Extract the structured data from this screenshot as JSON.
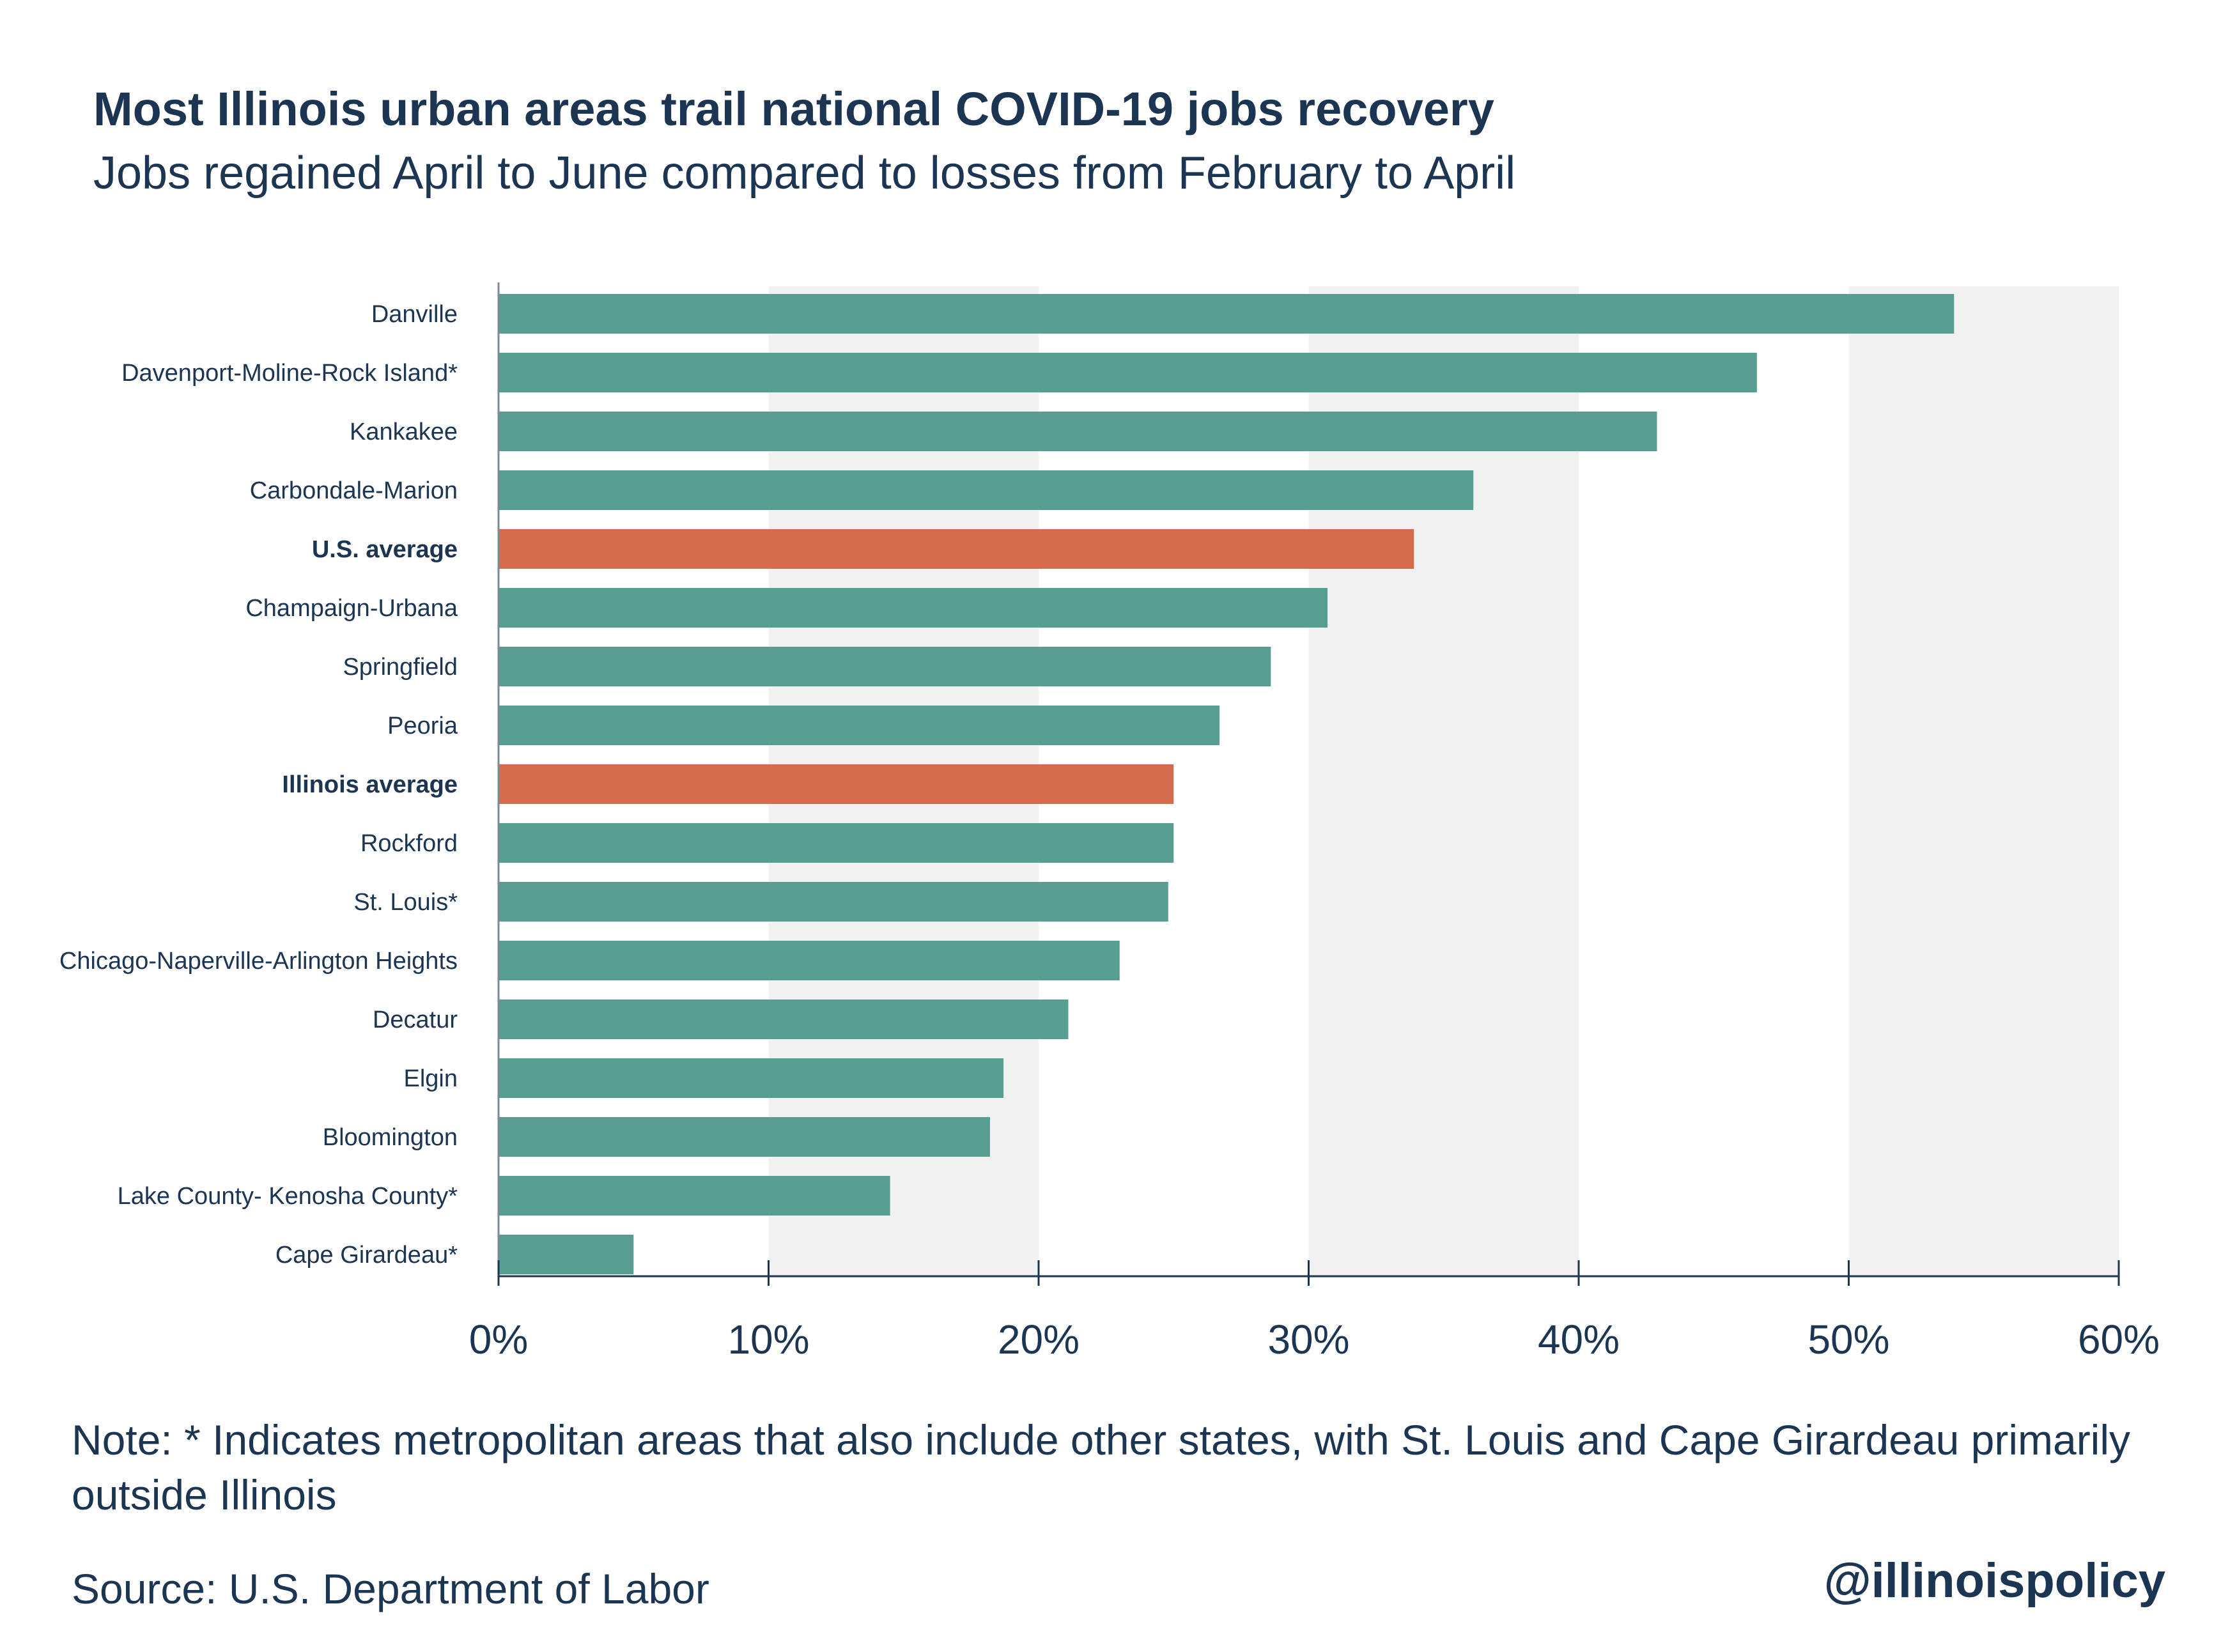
{
  "header": {
    "title": "Most Illinois urban areas trail national COVID-19 jobs recovery",
    "subtitle": "Jobs regained April to June compared to losses from February to April"
  },
  "footer": {
    "note": "Note: * Indicates metropolitan areas that also include other states, with St. Louis and Cape Girardeau primarily outside Illinois",
    "source": "Source: U.S. Department of Labor",
    "handle": "@illinoispolicy"
  },
  "colors": {
    "bar": "#579d92",
    "highlight": "#d56b4d",
    "band": "#f1f1f1",
    "axis": "#1b3553",
    "text": "#1b3553"
  },
  "chart_data": {
    "type": "bar",
    "orientation": "horizontal",
    "categories": [
      "Danville",
      "Davenport-Moline-Rock Island*",
      "Kankakee",
      "Carbondale-Marion",
      "U.S. average",
      "Champaign-Urbana",
      "Springfield",
      "Peoria",
      "Illinois average",
      "Rockford",
      "St. Louis*",
      "Chicago-Naperville-Arlington Heights",
      "Decatur",
      "Elgin",
      "Bloomington",
      "Lake County- Kenosha County*",
      "Cape Girardeau*"
    ],
    "values": [
      53.9,
      46.6,
      42.9,
      36.1,
      33.9,
      30.7,
      28.6,
      26.7,
      25.0,
      25.0,
      24.8,
      23.0,
      21.1,
      18.7,
      18.2,
      14.5,
      5.0
    ],
    "highlight": [
      "U.S. average",
      "Illinois average"
    ],
    "xlim": [
      0,
      60
    ],
    "xticks": [
      "0%",
      "10%",
      "20%",
      "30%",
      "40%",
      "50%",
      "60%"
    ],
    "grid": "alternating bands",
    "legend": "none"
  }
}
